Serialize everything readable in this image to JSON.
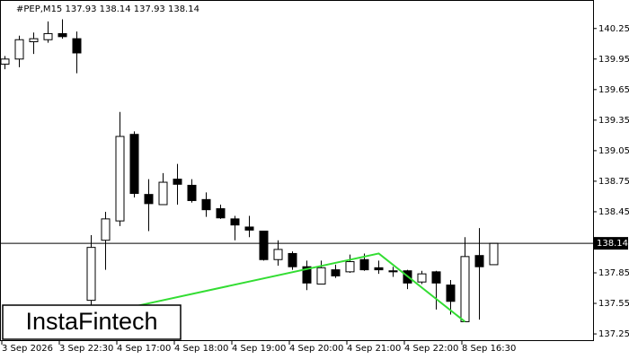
{
  "chart_data": {
    "type": "candlestick",
    "title": "#PEP,M15  137.93 138.14 137.93 138.14",
    "categories": [
      "3 Sep 2026",
      null,
      null,
      null,
      "3 Sep 22:30",
      null,
      null,
      null,
      "4 Sep 17:00",
      null,
      null,
      null,
      "4 Sep 18:00",
      null,
      null,
      null,
      "4 Sep 19:00",
      null,
      null,
      null,
      "4 Sep 20:00",
      null,
      null,
      null,
      "4 Sep 21:00",
      null,
      null,
      null,
      "4 Sep 22:00",
      null,
      null,
      null,
      "8 Sep 16:30",
      null,
      null
    ],
    "open": [
      139.9,
      139.95,
      140.12,
      140.14,
      140.2,
      140.15,
      137.58,
      138.17,
      138.36,
      139.21,
      138.62,
      138.52,
      138.77,
      138.71,
      138.57,
      138.48,
      138.38,
      138.3,
      138.26,
      137.98,
      138.04,
      137.91,
      137.74,
      137.88,
      137.86,
      137.98,
      137.9,
      137.87,
      137.87,
      137.76,
      137.86,
      137.73,
      137.37,
      138.02,
      137.93
    ],
    "high": [
      139.98,
      140.18,
      140.21,
      140.32,
      140.34,
      140.22,
      138.22,
      138.45,
      139.43,
      139.24,
      138.77,
      138.83,
      138.92,
      138.77,
      138.64,
      138.52,
      138.41,
      138.41,
      138.26,
      138.17,
      138.06,
      137.97,
      137.97,
      137.93,
      138.03,
      138.04,
      137.97,
      137.91,
      137.88,
      137.87,
      137.87,
      137.78,
      138.2,
      138.29,
      138.14
    ],
    "low": [
      139.85,
      139.87,
      140.0,
      140.11,
      140.15,
      139.81,
      137.53,
      137.88,
      138.31,
      138.59,
      138.26,
      138.52,
      138.52,
      138.54,
      138.4,
      138.38,
      138.17,
      138.2,
      137.97,
      137.92,
      137.88,
      137.68,
      137.74,
      137.8,
      137.85,
      137.87,
      137.84,
      137.81,
      137.69,
      137.74,
      137.49,
      137.44,
      137.37,
      137.39,
      137.93
    ],
    "close": [
      139.95,
      140.14,
      140.15,
      140.2,
      140.17,
      140.01,
      138.1,
      138.38,
      139.19,
      138.63,
      138.53,
      138.74,
      138.72,
      138.56,
      138.47,
      138.39,
      138.32,
      138.27,
      137.98,
      138.08,
      137.91,
      137.75,
      137.9,
      137.82,
      137.96,
      137.88,
      137.88,
      137.86,
      137.75,
      137.84,
      137.75,
      137.57,
      138.01,
      137.91,
      138.14
    ],
    "ylim": [
      137.18,
      140.53
    ],
    "yticks": [
      137.25,
      137.55,
      137.85,
      138.45,
      138.75,
      139.05,
      139.35,
      139.65,
      139.95,
      140.25
    ],
    "last_price": 138.14,
    "pattern": {
      "color": "#33dd33",
      "points": [
        {
          "x": 9,
          "y": 137.52
        },
        {
          "x": 26,
          "y": 138.04
        },
        {
          "x": 32,
          "y": 137.37
        }
      ]
    },
    "logo": "InstaFintech"
  }
}
